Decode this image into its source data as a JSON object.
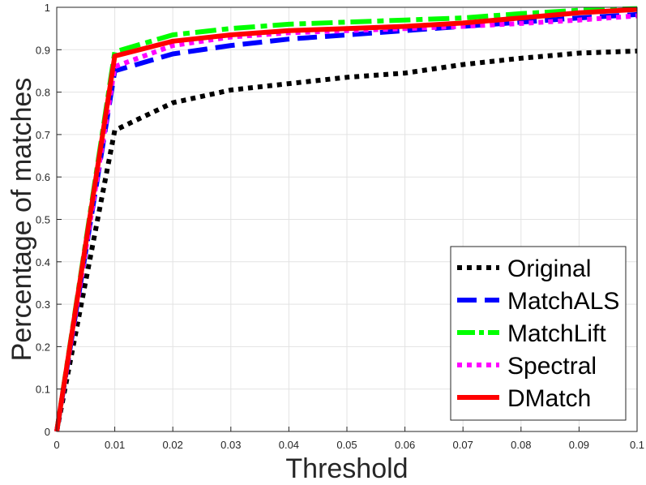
{
  "chart_data": {
    "type": "line",
    "xlabel": "Threshold",
    "ylabel": "Percentage of matches",
    "xlim": [
      0,
      0.1
    ],
    "ylim": [
      0,
      1
    ],
    "xticks": [
      "0",
      "0.01",
      "0.02",
      "0.03",
      "0.04",
      "0.05",
      "0.06",
      "0.07",
      "0.08",
      "0.09",
      "0.1"
    ],
    "yticks": [
      "0",
      "0.1",
      "0.2",
      "0.3",
      "0.4",
      "0.5",
      "0.6",
      "0.7",
      "0.8",
      "0.9",
      "1"
    ],
    "grid": true,
    "legend_position": "bottom-right",
    "x": [
      0,
      0.01,
      0.02,
      0.03,
      0.04,
      0.05,
      0.06,
      0.07,
      0.08,
      0.09,
      0.1
    ],
    "series": [
      {
        "name": "Original",
        "color": "#000000",
        "style": "dotted",
        "values": [
          0,
          0.71,
          0.775,
          0.805,
          0.82,
          0.835,
          0.845,
          0.865,
          0.88,
          0.892,
          0.897
        ]
      },
      {
        "name": "MatchALS",
        "color": "#0000ff",
        "style": "dashed",
        "values": [
          0,
          0.85,
          0.89,
          0.91,
          0.925,
          0.935,
          0.945,
          0.955,
          0.965,
          0.975,
          0.983
        ]
      },
      {
        "name": "MatchLift",
        "color": "#00ff00",
        "style": "dashdot",
        "values": [
          0,
          0.895,
          0.935,
          0.95,
          0.96,
          0.965,
          0.97,
          0.975,
          0.985,
          0.993,
          0.997
        ]
      },
      {
        "name": "Spectral",
        "color": "#ff00ff",
        "style": "dotted",
        "values": [
          0,
          0.86,
          0.91,
          0.93,
          0.94,
          0.945,
          0.95,
          0.955,
          0.962,
          0.97,
          0.98
        ]
      },
      {
        "name": "DMatch",
        "color": "#ff0000",
        "style": "solid",
        "values": [
          0,
          0.885,
          0.92,
          0.935,
          0.945,
          0.95,
          0.955,
          0.963,
          0.975,
          0.987,
          0.995
        ]
      }
    ]
  }
}
